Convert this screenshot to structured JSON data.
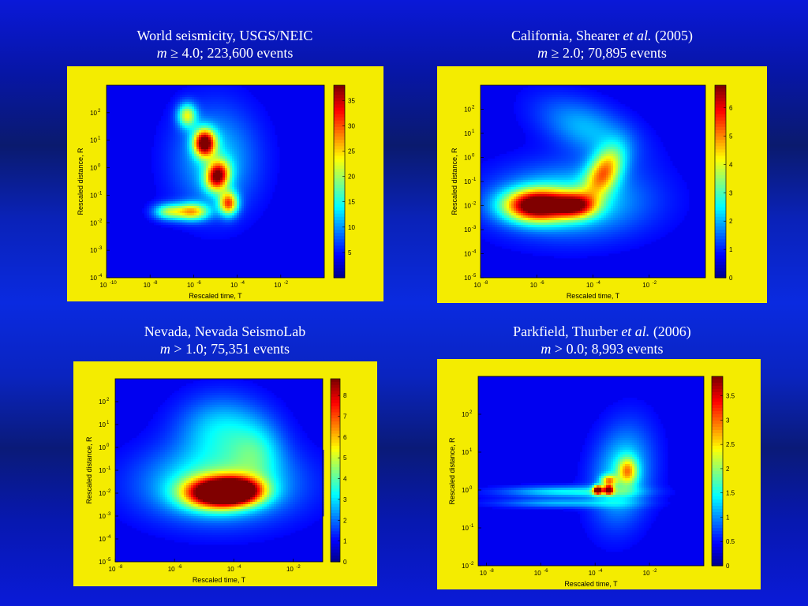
{
  "panels": [
    {
      "title": "World seismicity, USGS/NEIC",
      "subtitle_m": "m",
      "subtitle_rest": " ≥ 4.0; 223,600 events",
      "colormap": "jet",
      "chart_data": {
        "type": "heatmap",
        "xlabel": "Rescaled time, T",
        "ylabel": "Rescaled distance, R",
        "x_scale": "log",
        "y_scale": "log",
        "x_ticks": [
          {
            "base": "10",
            "exp": "-10"
          },
          {
            "base": "10",
            "exp": "-8"
          },
          {
            "base": "10",
            "exp": "-6"
          },
          {
            "base": "10",
            "exp": "-4"
          },
          {
            "base": "10",
            "exp": "-2"
          }
        ],
        "y_ticks": [
          {
            "base": "10",
            "exp": "-4"
          },
          {
            "base": "10",
            "exp": "-3"
          },
          {
            "base": "10",
            "exp": "-2"
          },
          {
            "base": "10",
            "exp": "-1"
          },
          {
            "base": "10",
            "exp": "0"
          },
          {
            "base": "10",
            "exp": "1"
          },
          {
            "base": "10",
            "exp": "2"
          }
        ],
        "xlim_log10": [
          -10,
          0
        ],
        "ylim_log10": [
          -4,
          3
        ],
        "colorbar_ticks": [
          "5",
          "10",
          "15",
          "20",
          "25",
          "30",
          "35"
        ],
        "colorbar_range": [
          0,
          38
        ],
        "blobs": [
          {
            "x": -5.5,
            "y": 0.9,
            "sx": 0.35,
            "sy": 0.35,
            "rot": -0.8,
            "amp": 0.95
          },
          {
            "x": -4.9,
            "y": -0.3,
            "sx": 0.35,
            "sy": 0.4,
            "rot": -0.8,
            "amp": 0.85
          },
          {
            "x": -4.4,
            "y": -1.3,
            "sx": 0.3,
            "sy": 0.3,
            "rot": -0.8,
            "amp": 0.7
          },
          {
            "x": -6.3,
            "y": 1.9,
            "sx": 0.3,
            "sy": 0.3,
            "rot": -0.8,
            "amp": 0.5
          },
          {
            "x": -6.1,
            "y": -1.6,
            "sx": 0.55,
            "sy": 0.22,
            "rot": 0,
            "amp": 0.62
          },
          {
            "x": -7.2,
            "y": -1.6,
            "sx": 0.45,
            "sy": 0.2,
            "rot": 0,
            "amp": 0.4
          },
          {
            "x": -5.0,
            "y": 0.3,
            "sx": 1.3,
            "sy": 1.3,
            "rot": -0.8,
            "amp": 0.25
          }
        ]
      }
    },
    {
      "title_a": "California, Shearer ",
      "title_i": "et al.",
      "title_b": " (2005)",
      "subtitle_m": "m",
      "subtitle_rest": " ≥ 2.0; 70,895 events",
      "colormap": "jet",
      "chart_data": {
        "type": "heatmap",
        "xlabel": "Rescaled time, T",
        "ylabel": "Rescaled distance, R",
        "x_scale": "log",
        "y_scale": "log",
        "x_ticks": [
          {
            "base": "10",
            "exp": "-8"
          },
          {
            "base": "10",
            "exp": "-6"
          },
          {
            "base": "10",
            "exp": "-4"
          },
          {
            "base": "10",
            "exp": "-2"
          }
        ],
        "y_ticks": [
          {
            "base": "10",
            "exp": "-5"
          },
          {
            "base": "10",
            "exp": "-4"
          },
          {
            "base": "10",
            "exp": "-3"
          },
          {
            "base": "10",
            "exp": "-2"
          },
          {
            "base": "10",
            "exp": "-1"
          },
          {
            "base": "10",
            "exp": "0"
          },
          {
            "base": "10",
            "exp": "1"
          },
          {
            "base": "10",
            "exp": "2"
          }
        ],
        "xlim_log10": [
          -8,
          0
        ],
        "ylim_log10": [
          -5,
          3
        ],
        "colorbar_ticks": [
          "0",
          "1",
          "2",
          "3",
          "4",
          "5",
          "6"
        ],
        "colorbar_range": [
          0,
          6.8
        ],
        "blobs": [
          {
            "x": -6.0,
            "y": -2.0,
            "sx": 0.8,
            "sy": 0.45,
            "rot": 0,
            "amp": 1.0
          },
          {
            "x": -4.6,
            "y": -2.0,
            "sx": 0.5,
            "sy": 0.35,
            "rot": 0,
            "amp": 0.6
          },
          {
            "x": -3.6,
            "y": -0.6,
            "sx": 0.4,
            "sy": 0.75,
            "rot": -0.4,
            "amp": 0.62
          },
          {
            "x": -4.8,
            "y": -1.8,
            "sx": 1.8,
            "sy": 1.0,
            "rot": 0,
            "amp": 0.32
          },
          {
            "x": -4.2,
            "y": 1.2,
            "sx": 1.3,
            "sy": 0.7,
            "rot": -0.5,
            "amp": 0.22
          }
        ]
      }
    },
    {
      "title": "Nevada, Nevada SeismoLab",
      "subtitle_m": "m",
      "subtitle_rest": " > 1.0; 75,351 events",
      "colormap": "jet",
      "chart_data": {
        "type": "heatmap",
        "xlabel": "Rescaled time, T",
        "ylabel": "Rescaled distance, R",
        "x_scale": "log",
        "y_scale": "log",
        "x_ticks": [
          {
            "base": "10",
            "exp": "-8"
          },
          {
            "base": "10",
            "exp": "-6"
          },
          {
            "base": "10",
            "exp": "-4"
          },
          {
            "base": "10",
            "exp": "-2"
          }
        ],
        "y_ticks": [
          {
            "base": "10",
            "exp": "-5"
          },
          {
            "base": "10",
            "exp": "-4"
          },
          {
            "base": "10",
            "exp": "-3"
          },
          {
            "base": "10",
            "exp": "-2"
          },
          {
            "base": "10",
            "exp": "-1"
          },
          {
            "base": "10",
            "exp": "0"
          },
          {
            "base": "10",
            "exp": "1"
          },
          {
            "base": "10",
            "exp": "2"
          }
        ],
        "xlim_log10": [
          -8,
          -1
        ],
        "ylim_log10": [
          -5,
          3
        ],
        "colorbar_ticks": [
          "0",
          "1",
          "2",
          "3",
          "4",
          "5",
          "6",
          "7",
          "8"
        ],
        "colorbar_range": [
          0,
          8.8
        ],
        "blobs": [
          {
            "x": -4.6,
            "y": -2.0,
            "sx": 0.75,
            "sy": 0.45,
            "rot": 0,
            "amp": 1.0
          },
          {
            "x": -3.8,
            "y": -1.9,
            "sx": 0.6,
            "sy": 0.4,
            "rot": 0,
            "amp": 0.7
          },
          {
            "x": -4.5,
            "y": -1.6,
            "sx": 1.7,
            "sy": 1.1,
            "rot": 0,
            "amp": 0.38
          },
          {
            "x": -4.4,
            "y": 0.8,
            "sx": 1.0,
            "sy": 1.0,
            "rot": -0.5,
            "amp": 0.26
          },
          {
            "x": -3.2,
            "y": -0.2,
            "sx": 0.6,
            "sy": 0.9,
            "rot": 0,
            "amp": 0.2
          }
        ]
      }
    },
    {
      "title_a": "Parkfield, Thurber ",
      "title_i": "et al.",
      "title_b": " (2006)",
      "subtitle_m": "m",
      "subtitle_rest": " > 0.0; 8,993 events",
      "colormap": "jet",
      "chart_data": {
        "type": "heatmap",
        "xlabel": "Rescaled time, T",
        "ylabel": "Rescaled distance, R",
        "x_scale": "log",
        "y_scale": "log",
        "x_ticks": [
          {
            "base": "10",
            "exp": "-8"
          },
          {
            "base": "10",
            "exp": "-6"
          },
          {
            "base": "10",
            "exp": "-4"
          },
          {
            "base": "10",
            "exp": "-2"
          }
        ],
        "y_ticks": [
          {
            "base": "10",
            "exp": "-2"
          },
          {
            "base": "10",
            "exp": "-1"
          },
          {
            "base": "10",
            "exp": "0"
          },
          {
            "base": "10",
            "exp": "1"
          },
          {
            "base": "10",
            "exp": "2"
          }
        ],
        "xlim_log10": [
          -8.3,
          0
        ],
        "ylim_log10": [
          -2,
          3
        ],
        "colorbar_ticks": [
          "0",
          "0.5",
          "1",
          "1.5",
          "2",
          "2.5",
          "3",
          "3.5"
        ],
        "colorbar_range": [
          0,
          3.9
        ],
        "blobs": [
          {
            "x": -3.9,
            "y": 0.0,
            "sx": 0.12,
            "sy": 0.08,
            "rot": 0,
            "amp": 0.95
          },
          {
            "x": -3.5,
            "y": 0.0,
            "sx": 0.12,
            "sy": 0.08,
            "rot": 0,
            "amp": 0.85
          },
          {
            "x": -3.5,
            "y": 0.25,
            "sx": 0.2,
            "sy": 0.1,
            "rot": 0,
            "amp": 0.5
          },
          {
            "x": -2.8,
            "y": 0.5,
            "sx": 0.25,
            "sy": 0.25,
            "rot": 0,
            "amp": 0.45
          },
          {
            "x": -3.0,
            "y": 0.4,
            "sx": 0.7,
            "sy": 0.9,
            "rot": -0.4,
            "amp": 0.3
          },
          {
            "x": -5.0,
            "y": -0.05,
            "sx": 1.6,
            "sy": 0.1,
            "rot": 0,
            "amp": 0.3
          },
          {
            "x": -5.2,
            "y": -0.35,
            "sx": 1.6,
            "sy": 0.08,
            "rot": 0,
            "amp": 0.22
          }
        ]
      }
    }
  ]
}
